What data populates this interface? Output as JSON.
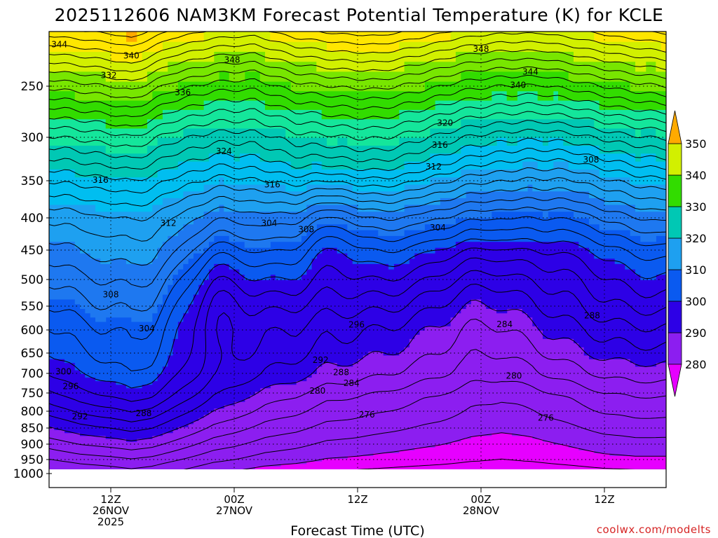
{
  "chart_data": {
    "type": "contour",
    "title": "2025112606 NAM3KM Forecast Potential Temperature (K) for KCLE",
    "xlabel": "Forecast Time (UTC)",
    "ylabel": "",
    "y_ticks": [
      250,
      300,
      350,
      400,
      450,
      500,
      550,
      600,
      650,
      700,
      750,
      800,
      850,
      900,
      950,
      1000
    ],
    "ylim": [
      200,
      1010
    ],
    "xlim_hours": [
      6,
      66
    ],
    "x_ticks": [
      {
        "hour": 12,
        "lines": [
          "12Z",
          "26NOV",
          "2025"
        ]
      },
      {
        "hour": 24,
        "lines": [
          "00Z",
          "27NOV"
        ]
      },
      {
        "hour": 36,
        "lines": [
          "12Z"
        ]
      },
      {
        "hour": 48,
        "lines": [
          "00Z",
          "28NOV"
        ]
      },
      {
        "hour": 60,
        "lines": [
          "12Z"
        ]
      }
    ],
    "colorbar": {
      "levels": [
        280,
        290,
        300,
        310,
        320,
        330,
        340,
        350
      ],
      "colors": [
        "#e600ff",
        "#8c1ef0",
        "#2d00e6",
        "#0a5af0",
        "#1ea0f0",
        "#00c8c8",
        "#14e69b",
        "#32dc00",
        "#b4f000",
        "#ffe600",
        "#ffaa00"
      ]
    },
    "contour_interval": 2,
    "contour_labels": [
      {
        "value": 344,
        "hour": 7.0,
        "p": 212
      },
      {
        "value": 340,
        "hour": 14.0,
        "p": 222
      },
      {
        "value": 348,
        "hour": 23.8,
        "p": 226
      },
      {
        "value": 332,
        "hour": 11.8,
        "p": 240
      },
      {
        "value": 336,
        "hour": 19.0,
        "p": 256
      },
      {
        "value": 348,
        "hour": 48.0,
        "p": 216
      },
      {
        "value": 344,
        "hour": 52.8,
        "p": 237
      },
      {
        "value": 340,
        "hour": 51.6,
        "p": 249
      },
      {
        "value": 320,
        "hour": 44.5,
        "p": 286
      },
      {
        "value": 316,
        "hour": 44.0,
        "p": 309
      },
      {
        "value": 324,
        "hour": 23.0,
        "p": 316
      },
      {
        "value": 312,
        "hour": 43.4,
        "p": 334
      },
      {
        "value": 308,
        "hour": 58.7,
        "p": 326
      },
      {
        "value": 316,
        "hour": 11.0,
        "p": 349
      },
      {
        "value": 316,
        "hour": 27.7,
        "p": 355
      },
      {
        "value": 312,
        "hour": 17.6,
        "p": 408
      },
      {
        "value": 304,
        "hour": 27.4,
        "p": 408
      },
      {
        "value": 308,
        "hour": 31.0,
        "p": 418
      },
      {
        "value": 304,
        "hour": 43.8,
        "p": 415
      },
      {
        "value": 308,
        "hour": 12.0,
        "p": 528
      },
      {
        "value": 296,
        "hour": 35.9,
        "p": 589
      },
      {
        "value": 288,
        "hour": 58.8,
        "p": 570
      },
      {
        "value": 284,
        "hour": 50.3,
        "p": 588
      },
      {
        "value": 304,
        "hour": 15.5,
        "p": 597
      },
      {
        "value": 292,
        "hour": 32.4,
        "p": 667
      },
      {
        "value": 300,
        "hour": 7.4,
        "p": 696
      },
      {
        "value": 288,
        "hour": 34.4,
        "p": 697
      },
      {
        "value": 284,
        "hour": 35.4,
        "p": 725
      },
      {
        "value": 280,
        "hour": 51.2,
        "p": 706
      },
      {
        "value": 296,
        "hour": 8.1,
        "p": 733
      },
      {
        "value": 280,
        "hour": 32.1,
        "p": 745
      },
      {
        "value": 288,
        "hour": 15.2,
        "p": 806
      },
      {
        "value": 292,
        "hour": 9.0,
        "p": 816
      },
      {
        "value": 276,
        "hour": 36.9,
        "p": 810
      },
      {
        "value": 276,
        "hour": 54.3,
        "p": 820
      }
    ]
  },
  "credit": "coolwx.com/modelts"
}
